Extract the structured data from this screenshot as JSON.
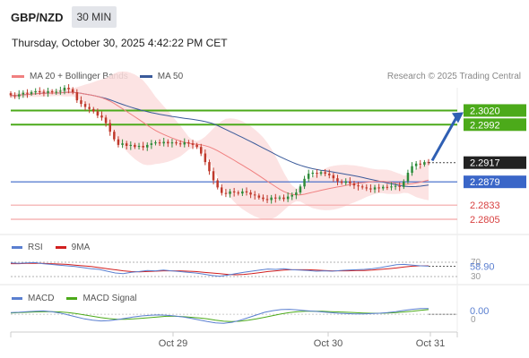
{
  "header": {
    "pair": "GBP/NZD",
    "timeframe": "30 MIN",
    "datetime": "Thursday, October 30, 2025 4:42:22 PM CET"
  },
  "legend": {
    "ma20": "MA 20 + Bollinger Bands",
    "ma50": "MA 50",
    "credit": "Research © 2025 Trading Central"
  },
  "rsi_legend": {
    "rsi": "RSI",
    "ma": "9MA"
  },
  "macd_legend": {
    "macd": "MACD",
    "signal": "MACD Signal"
  },
  "colors": {
    "ma20": "#f08080",
    "ma50": "#3a5a9a",
    "band_fill": "#fcdede",
    "candle_up": "#2e8b3a",
    "candle_down": "#c0392b",
    "resistance": "#4caa1a",
    "support": "#f4a6a6",
    "pivot": "#3a66c8",
    "arrow": "#2f5fb3",
    "rsi": "#5a7fd0",
    "rsi_ma": "#d11f1f",
    "macd": "#5a7fd0",
    "macd_signal": "#4caa1a"
  },
  "chart_data": {
    "type": "candlestick",
    "symbol": "GBP/NZD",
    "interval": "30 MIN",
    "x_ticks": [
      "Oct 29",
      "Oct 30",
      "Oct 31"
    ],
    "ylim": [
      2.2775,
      2.3065
    ],
    "last_price": 2.2917,
    "price_levels": [
      {
        "value": 2.302,
        "label": "2.3020",
        "kind": "resistance"
      },
      {
        "value": 2.2992,
        "label": "2.2992",
        "kind": "resistance"
      },
      {
        "value": 2.2879,
        "label": "2.2879",
        "kind": "pivot"
      },
      {
        "value": 2.2833,
        "label": "2.2833",
        "kind": "support"
      },
      {
        "value": 2.2805,
        "label": "2.2805",
        "kind": "support"
      }
    ],
    "target_arrow": {
      "from": 2.2921,
      "to": 2.3013
    },
    "closes": [
      2.305,
      2.3048,
      2.3052,
      2.3055,
      2.3053,
      2.3056,
      2.3058,
      2.3057,
      2.3055,
      2.3058,
      2.3056,
      2.3057,
      2.3059,
      2.3065,
      2.3062,
      2.3056,
      2.304,
      2.3033,
      2.3027,
      2.3023,
      2.3018,
      2.301,
      2.3006,
      2.2995,
      2.2978,
      2.2963,
      2.2952,
      2.2955,
      2.295,
      2.2952,
      2.2948,
      2.295,
      2.2947,
      2.2952,
      2.2955,
      2.2957,
      2.2955,
      2.2958,
      2.2955,
      2.2957,
      2.2955,
      2.2953,
      2.2957,
      2.2955,
      2.2952,
      2.2948,
      2.2935,
      2.2918,
      2.29,
      2.2882,
      2.2868,
      2.2857,
      2.2855,
      2.286,
      2.2858,
      2.2856,
      2.286,
      2.2858,
      2.2854,
      2.2852,
      2.2848,
      2.2845,
      2.2843,
      2.2848,
      2.2846,
      2.2848,
      2.2845,
      2.285,
      2.2853,
      2.2858,
      2.287,
      2.2885,
      2.2895,
      2.2897,
      2.2895,
      2.2898,
      2.2895,
      2.2892,
      2.2886,
      2.288,
      2.2877,
      2.288,
      2.2876,
      2.2872,
      2.287,
      2.2868,
      2.2866,
      2.2864,
      2.2868,
      2.2866,
      2.2869,
      2.2868,
      2.287,
      2.2871,
      2.2869,
      2.288,
      2.2897,
      2.291,
      2.2915,
      2.2913,
      2.2918,
      2.2917
    ],
    "rsi": {
      "label": "RSI",
      "current": 58.9,
      "current_label": "58.90",
      "levels": [
        70,
        30
      ],
      "level_labels": [
        "70",
        "30"
      ],
      "ylim": [
        20,
        80
      ],
      "values": [
        68,
        67,
        68,
        69,
        66,
        64,
        62,
        60,
        58,
        55,
        52,
        50,
        45,
        40,
        38,
        42,
        44,
        47,
        46,
        48,
        46,
        44,
        42,
        40,
        37,
        33,
        31,
        34,
        38,
        42,
        45,
        48,
        51,
        50,
        52,
        49,
        48,
        47,
        45,
        46,
        45,
        47,
        48,
        49,
        50,
        52,
        55,
        59,
        63,
        64,
        62,
        60,
        59
      ],
      "ma_values": [
        66,
        66,
        67,
        67,
        67,
        66,
        65,
        64,
        62,
        60,
        58,
        55,
        52,
        49,
        46,
        44,
        43,
        44,
        45,
        46,
        46,
        46,
        45,
        44,
        42,
        40,
        38,
        36,
        35,
        36,
        38,
        41,
        44,
        46,
        48,
        49,
        49,
        49,
        48,
        47,
        46,
        46,
        46,
        47,
        47,
        48,
        50,
        52,
        54,
        57,
        59,
        60,
        60
      ]
    },
    "macd": {
      "label": "MACD",
      "current": 0.0,
      "current_label": "0.00",
      "zero_label": "0",
      "ylim": [
        -0.004,
        0.003
      ],
      "macd_values": [
        0.0005,
        0.0006,
        0.0008,
        0.0009,
        0.001,
        0.0008,
        0.0004,
        -0.0002,
        -0.0008,
        -0.0014,
        -0.0018,
        -0.002,
        -0.0019,
        -0.0016,
        -0.0012,
        -0.0008,
        -0.0005,
        -0.0003,
        -0.0002,
        -0.0003,
        -0.0005,
        -0.0008,
        -0.0012,
        -0.0017,
        -0.0022,
        -0.0026,
        -0.0027,
        -0.0024,
        -0.0018,
        -0.001,
        -0.0002,
        0.0006,
        0.0011,
        0.0014,
        0.0015,
        0.0013,
        0.0011,
        0.0009,
        0.0007,
        0.0005,
        0.0003,
        0.0002,
        0.0001,
        0.0001,
        0.0002,
        0.0003,
        0.0005,
        0.0008,
        0.0012,
        0.0015,
        0.0017,
        0.0017
      ],
      "signal_values": [
        0.0004,
        0.0005,
        0.0006,
        0.0007,
        0.0008,
        0.0008,
        0.0007,
        0.0005,
        0.0002,
        -0.0002,
        -0.0006,
        -0.001,
        -0.0013,
        -0.0015,
        -0.0015,
        -0.0014,
        -0.0012,
        -0.001,
        -0.0008,
        -0.0006,
        -0.0006,
        -0.0007,
        -0.0009,
        -0.0011,
        -0.0014,
        -0.0018,
        -0.0021,
        -0.0022,
        -0.0021,
        -0.0018,
        -0.0014,
        -0.0009,
        -0.0004,
        0.0001,
        0.0005,
        0.0008,
        0.0009,
        0.0009,
        0.0009,
        0.0008,
        0.0007,
        0.0006,
        0.0005,
        0.0004,
        0.0003,
        0.0003,
        0.0004,
        0.0005,
        0.0007,
        0.0009,
        0.0012,
        0.0014
      ]
    }
  }
}
